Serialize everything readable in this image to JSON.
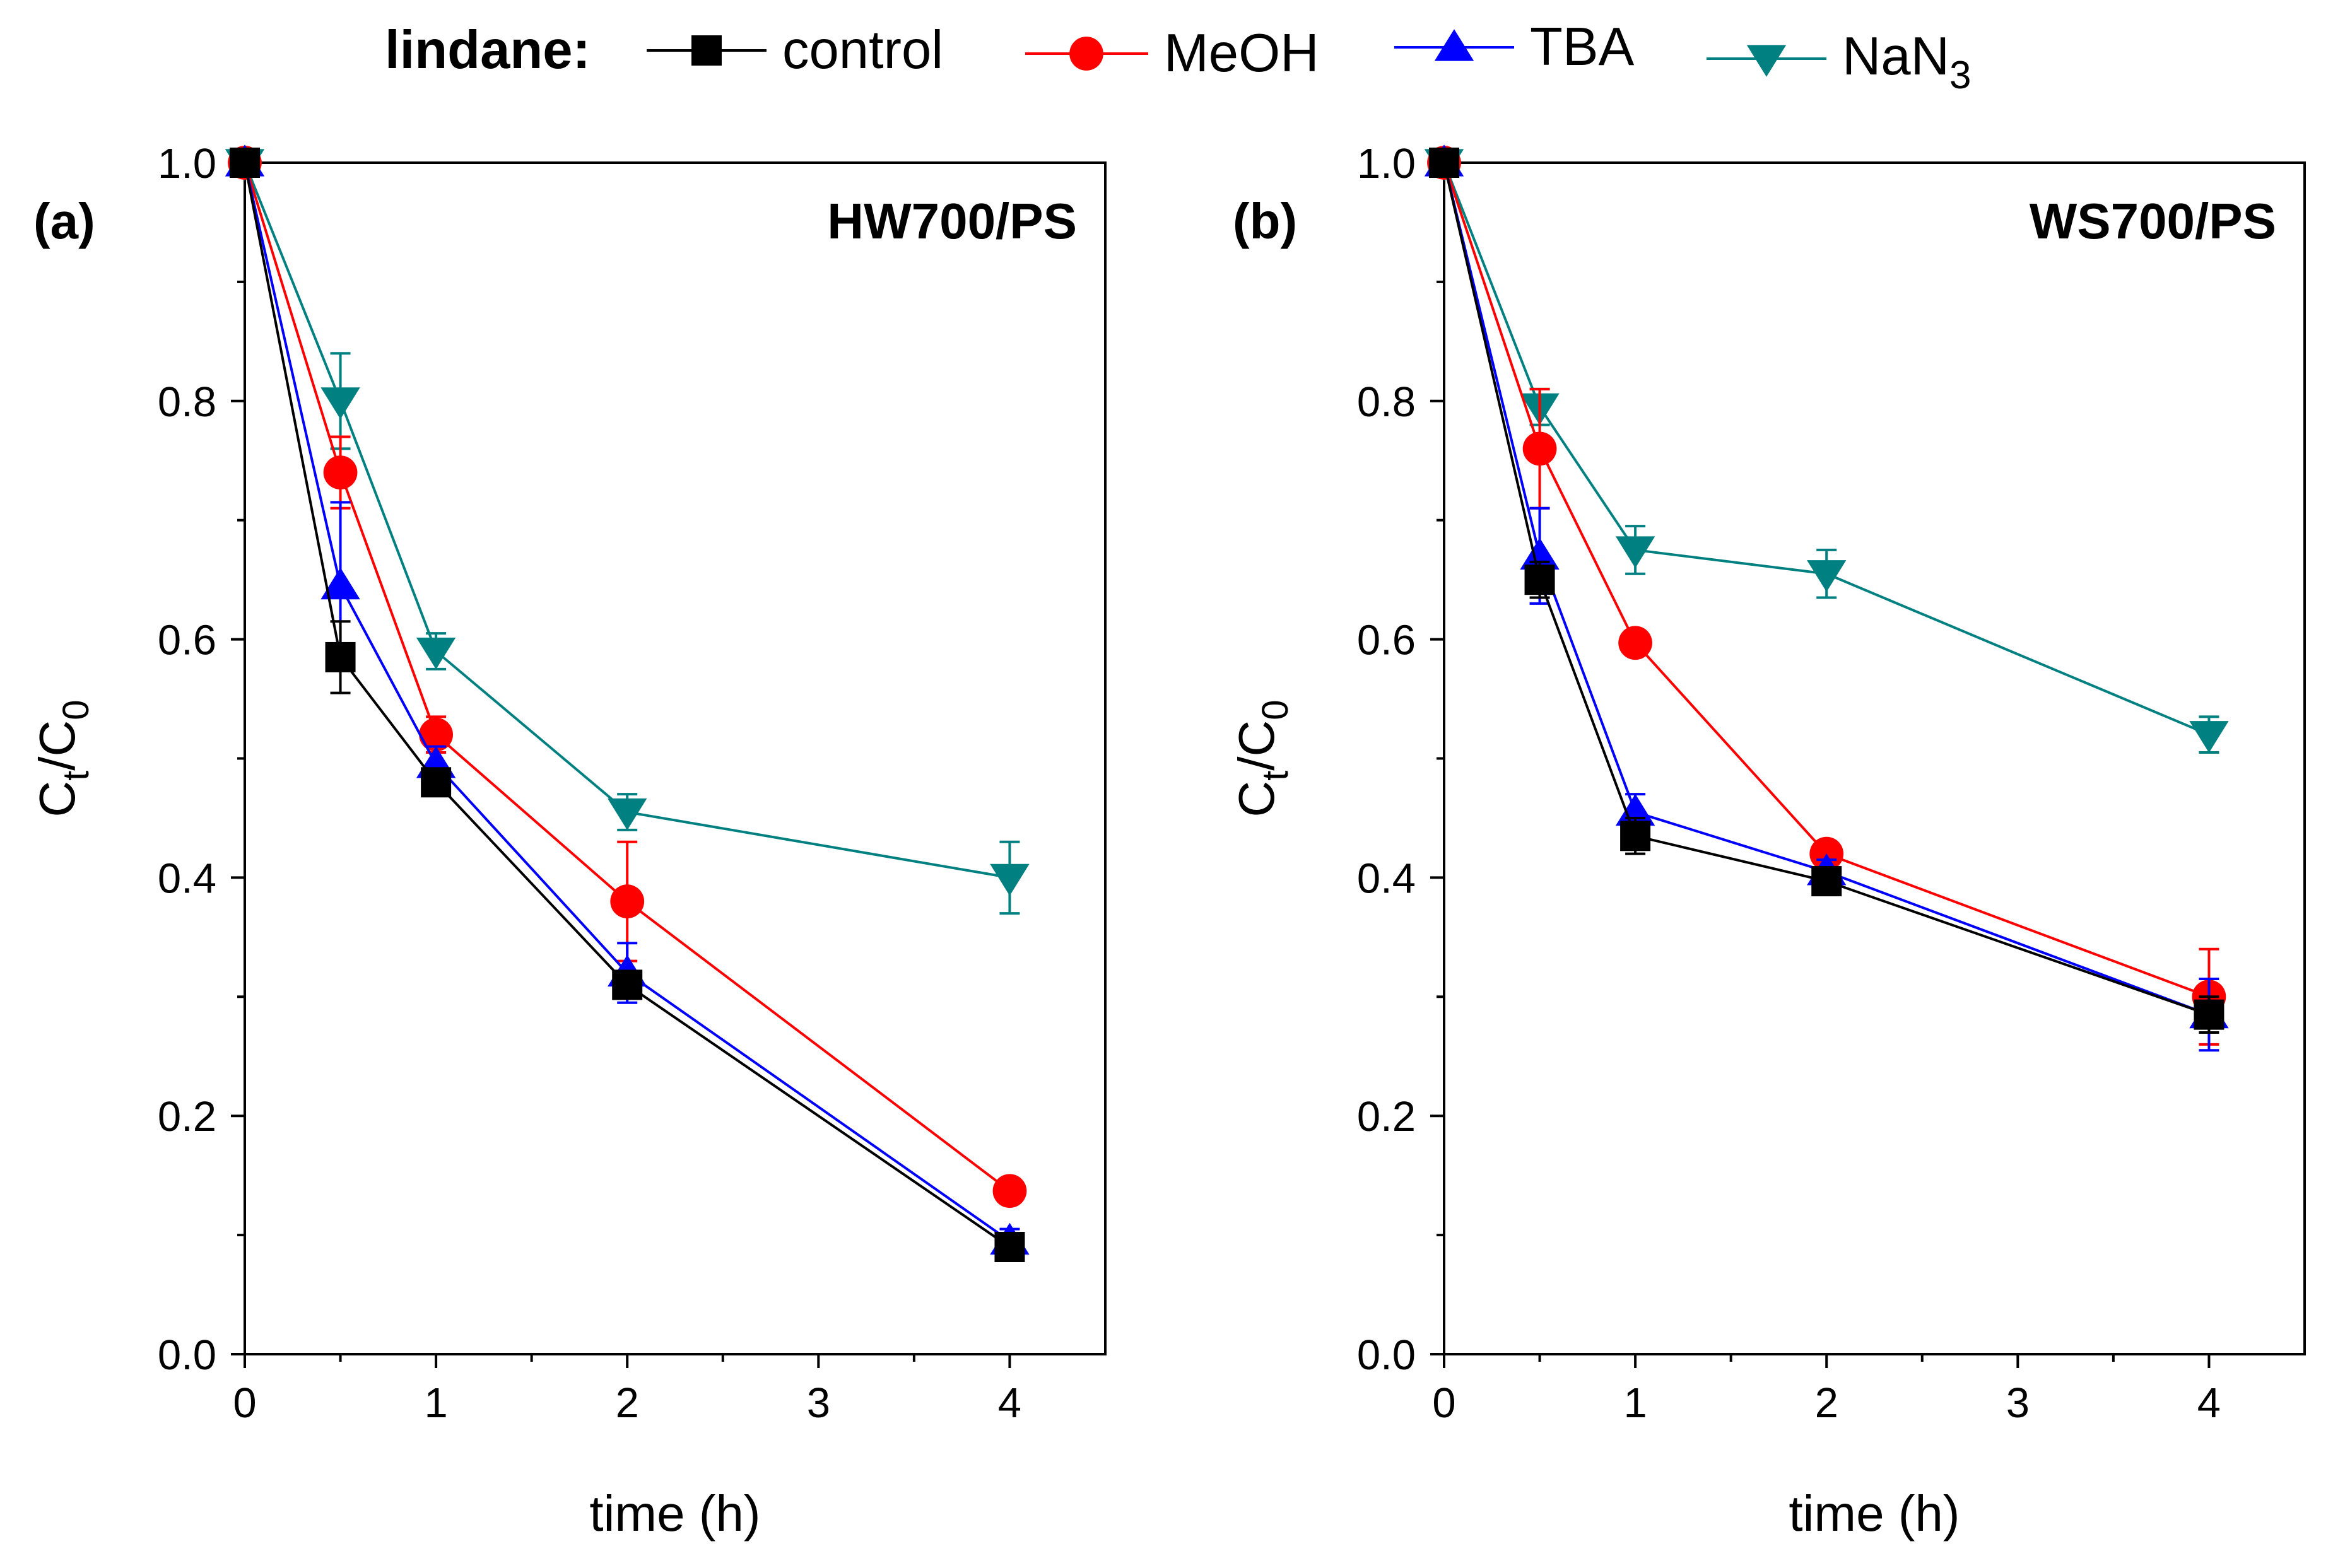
{
  "legend": {
    "heading": "lindane:",
    "items": [
      {
        "name": "control",
        "label": "control",
        "label_sub": "",
        "color": "#000000",
        "marker": "square"
      },
      {
        "name": "meoh",
        "label": "MeOH",
        "label_sub": "",
        "color": "#ff0000",
        "marker": "circle"
      },
      {
        "name": "tba",
        "label": "TBA",
        "label_sub": "",
        "color": "#0000ff",
        "marker": "triangle-up"
      },
      {
        "name": "nan3",
        "label": "NaN",
        "label_sub": "3",
        "color": "#008080",
        "marker": "triangle-down"
      }
    ]
  },
  "chart_data": [
    {
      "type": "line",
      "panel_label": "(a)",
      "title": "HW700/PS",
      "xlabel": "time (h)",
      "ylabel_main": "C",
      "ylabel_sub1": "t",
      "ylabel_mid": "/C",
      "ylabel_sub2": "0",
      "xlim": [
        0,
        4.5
      ],
      "ylim": [
        0,
        1.0
      ],
      "xticks": [
        0,
        1,
        2,
        3,
        4
      ],
      "xtick_labels": [
        "0",
        "1",
        "2",
        "3",
        "4"
      ],
      "yticks": [
        0.0,
        0.2,
        0.4,
        0.6,
        0.8,
        1.0
      ],
      "ytick_labels": [
        "0.0",
        "0.2",
        "0.4",
        "0.6",
        "0.8",
        "1.0"
      ],
      "x": [
        0,
        0.5,
        1,
        2,
        4
      ],
      "series": [
        {
          "name": "control",
          "values": [
            1.0,
            0.585,
            0.48,
            0.31,
            0.09
          ],
          "errors": [
            0.0,
            0.03,
            0.01,
            0.01,
            0.01
          ]
        },
        {
          "name": "MeOH",
          "values": [
            1.0,
            0.74,
            0.52,
            0.38,
            0.137
          ],
          "errors": [
            0.0,
            0.03,
            0.015,
            0.05,
            0.01
          ]
        },
        {
          "name": "TBA",
          "values": [
            1.0,
            0.645,
            0.495,
            0.32,
            0.095
          ],
          "errors": [
            0.0,
            0.07,
            0.015,
            0.025,
            0.01
          ]
        },
        {
          "name": "NaN3",
          "values": [
            1.0,
            0.8,
            0.59,
            0.455,
            0.4
          ],
          "errors": [
            0.0,
            0.04,
            0.015,
            0.015,
            0.03
          ]
        }
      ]
    },
    {
      "type": "line",
      "panel_label": "(b)",
      "title": "WS700/PS",
      "xlabel": "time (h)",
      "ylabel_main": "C",
      "ylabel_sub1": "t",
      "ylabel_mid": "/C",
      "ylabel_sub2": "0",
      "xlim": [
        0,
        4.5
      ],
      "ylim": [
        0,
        1.0
      ],
      "xticks": [
        0,
        1,
        2,
        3,
        4
      ],
      "xtick_labels": [
        "0",
        "1",
        "2",
        "3",
        "4"
      ],
      "yticks": [
        0.0,
        0.2,
        0.4,
        0.6,
        0.8,
        1.0
      ],
      "ytick_labels": [
        "0.0",
        "0.2",
        "0.4",
        "0.6",
        "0.8",
        "1.0"
      ],
      "x": [
        0,
        0.5,
        1,
        2,
        4
      ],
      "series": [
        {
          "name": "control",
          "values": [
            1.0,
            0.65,
            0.435,
            0.397,
            0.285
          ],
          "errors": [
            0.0,
            0.015,
            0.015,
            0.01,
            0.015
          ]
        },
        {
          "name": "MeOH",
          "values": [
            1.0,
            0.76,
            0.597,
            0.42,
            0.3
          ],
          "errors": [
            0.0,
            0.05,
            0.01,
            0.01,
            0.04
          ]
        },
        {
          "name": "TBA",
          "values": [
            1.0,
            0.67,
            0.455,
            0.405,
            0.285
          ],
          "errors": [
            0.0,
            0.04,
            0.015,
            0.01,
            0.03
          ]
        },
        {
          "name": "NaN3",
          "values": [
            1.0,
            0.795,
            0.675,
            0.655,
            0.52
          ],
          "errors": [
            0.0,
            0.015,
            0.02,
            0.02,
            0.015
          ]
        }
      ]
    }
  ]
}
